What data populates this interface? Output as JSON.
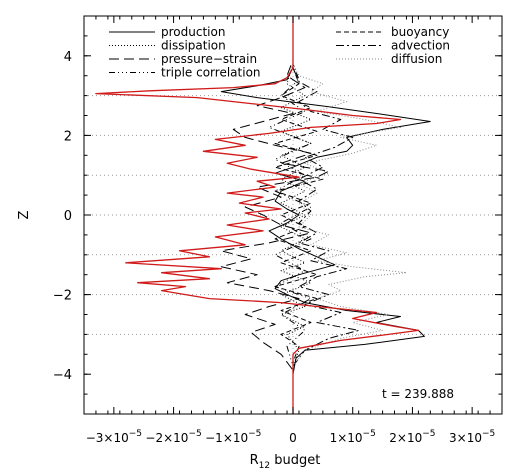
{
  "chart_data": {
    "type": "line",
    "orientation": "vertical-profile",
    "xlabel": "R",
    "xlabel_subscript": "12",
    "xlabel_suffix": " budget",
    "ylabel": "Z",
    "xlim": [
      -3.5e-05,
      3.5e-05
    ],
    "ylim": [
      -5,
      5
    ],
    "x_ticks": [
      {
        "value": -3e-05,
        "mantissa": "−3×10",
        "exp": "−5"
      },
      {
        "value": -2e-05,
        "mantissa": "−2×10",
        "exp": "−5"
      },
      {
        "value": -1e-05,
        "mantissa": "−1×10",
        "exp": "−5"
      },
      {
        "value": 0,
        "mantissa": "0",
        "exp": ""
      },
      {
        "value": 1e-05,
        "mantissa": "1×10",
        "exp": "−5"
      },
      {
        "value": 2e-05,
        "mantissa": "2×10",
        "exp": "−5"
      },
      {
        "value": 3e-05,
        "mantissa": "3×10",
        "exp": "−5"
      }
    ],
    "y_ticks": [
      {
        "value": -4,
        "label": "−4"
      },
      {
        "value": -2,
        "label": "−2"
      },
      {
        "value": 0,
        "label": "0"
      },
      {
        "value": 2,
        "label": "2"
      },
      {
        "value": 4,
        "label": "4"
      }
    ],
    "y_minor_step": 0.5,
    "reference_lines_z": [
      -3,
      -2,
      -1,
      0,
      1,
      2,
      3
    ],
    "annotation": "t = 239.888",
    "series": [
      {
        "name": "production",
        "color": "#000000",
        "dash": "none",
        "points": [
          [
            0,
            -5.0
          ],
          [
            0,
            -4.0
          ],
          [
            5e-07,
            -3.6
          ],
          [
            2e-06,
            -3.4
          ],
          [
            1.2e-05,
            -3.25
          ],
          [
            2.2e-05,
            -3.05
          ],
          [
            2.1e-05,
            -2.9
          ],
          [
            1.4e-05,
            -2.7
          ],
          [
            1.8e-05,
            -2.55
          ],
          [
            9e-06,
            -2.4
          ],
          [
            2e-06,
            -2.2
          ],
          [
            -1e-06,
            -2.0
          ],
          [
            -3e-06,
            -1.85
          ],
          [
            -2e-06,
            -1.65
          ],
          [
            1e-06,
            -1.5
          ],
          [
            7e-06,
            -1.25
          ],
          [
            4e-06,
            -1.05
          ],
          [
            1e-06,
            -0.85
          ],
          [
            -2e-06,
            -0.6
          ],
          [
            -4e-06,
            -0.4
          ],
          [
            -1e-06,
            -0.2
          ],
          [
            1e-06,
            0.0
          ],
          [
            -1e-06,
            0.15
          ],
          [
            -3e-06,
            0.35
          ],
          [
            -2e-06,
            0.6
          ],
          [
            2e-06,
            0.85
          ],
          [
            -3e-06,
            1.05
          ],
          [
            0,
            1.2
          ],
          [
            4e-06,
            1.45
          ],
          [
            9e-06,
            1.6
          ],
          [
            1e-05,
            1.75
          ],
          [
            9e-06,
            1.95
          ],
          [
            1.5e-05,
            2.15
          ],
          [
            2.3e-05,
            2.35
          ],
          [
            1.4e-05,
            2.55
          ],
          [
            6e-06,
            2.72
          ],
          [
            -6e-06,
            2.95
          ],
          [
            -1.2e-05,
            3.1
          ],
          [
            -6e-06,
            3.25
          ],
          [
            -1e-06,
            3.4
          ],
          [
            0,
            3.7
          ],
          [
            0,
            5.0
          ]
        ]
      },
      {
        "name": "dissipation",
        "color": "#000000",
        "dash": "1,2",
        "points": [
          [
            0,
            -5.0
          ],
          [
            0,
            -3.8
          ],
          [
            1e-06,
            -3.4
          ],
          [
            -1e-06,
            -3.0
          ],
          [
            2e-06,
            -2.8
          ],
          [
            -2e-06,
            -2.5
          ],
          [
            2e-06,
            -2.3
          ],
          [
            -2e-06,
            -2.0
          ],
          [
            3e-06,
            -1.7
          ],
          [
            -2e-06,
            -1.4
          ],
          [
            2e-06,
            -1.2
          ],
          [
            -2e-06,
            -0.9
          ],
          [
            2e-06,
            -0.6
          ],
          [
            -2e-06,
            -0.3
          ],
          [
            2e-06,
            0.0
          ],
          [
            -2e-06,
            0.3
          ],
          [
            2e-06,
            0.6
          ],
          [
            -2e-06,
            0.9
          ],
          [
            2e-06,
            1.2
          ],
          [
            -2e-06,
            1.5
          ],
          [
            3e-06,
            1.8
          ],
          [
            -2e-06,
            2.1
          ],
          [
            3e-06,
            2.4
          ],
          [
            -2e-06,
            2.7
          ],
          [
            2e-06,
            3.0
          ],
          [
            -1e-06,
            3.3
          ],
          [
            0,
            3.8
          ],
          [
            0,
            5.0
          ]
        ]
      },
      {
        "name": "pressure−strain",
        "color": "#000000",
        "dash": "10,5",
        "points": [
          [
            0,
            -5.0
          ],
          [
            0,
            -3.9
          ],
          [
            -2e-06,
            -3.5
          ],
          [
            -5e-06,
            -3.2
          ],
          [
            -7e-06,
            -2.95
          ],
          [
            -3e-06,
            -2.75
          ],
          [
            -8e-06,
            -2.5
          ],
          [
            -4e-06,
            -2.3
          ],
          [
            1e-06,
            -2.1
          ],
          [
            -4e-06,
            -1.9
          ],
          [
            -1.1e-05,
            -1.7
          ],
          [
            -6e-06,
            -1.5
          ],
          [
            -1.2e-05,
            -1.3
          ],
          [
            -7e-06,
            -1.1
          ],
          [
            -1.2e-05,
            -0.9
          ],
          [
            -4e-06,
            -0.7
          ],
          [
            3e-06,
            -0.45
          ],
          [
            -2e-06,
            -0.25
          ],
          [
            -5e-06,
            0.0
          ],
          [
            -8e-06,
            0.2
          ],
          [
            -2e-06,
            0.45
          ],
          [
            -6e-06,
            0.7
          ],
          [
            4e-06,
            0.95
          ],
          [
            6e-06,
            1.1
          ],
          [
            -2e-06,
            1.3
          ],
          [
            3e-06,
            1.55
          ],
          [
            -3e-06,
            1.75
          ],
          [
            -8e-06,
            1.95
          ],
          [
            -1e-05,
            2.15
          ],
          [
            -5e-06,
            2.35
          ],
          [
            0,
            2.55
          ],
          [
            -6e-06,
            2.75
          ],
          [
            -2e-06,
            2.95
          ],
          [
            2e-06,
            3.2
          ],
          [
            -1e-06,
            3.5
          ],
          [
            0,
            3.9
          ],
          [
            0,
            5.0
          ]
        ]
      },
      {
        "name": "triple correlation",
        "color": "#000000",
        "dash": "6,3,1,3,1,3,1,3",
        "points": [
          [
            0,
            -5.0
          ],
          [
            0,
            -3.8
          ],
          [
            -1e-06,
            -3.3
          ],
          [
            2e-06,
            -2.9
          ],
          [
            -2e-06,
            -2.5
          ],
          [
            3e-06,
            -2.1
          ],
          [
            -3e-06,
            -1.8
          ],
          [
            2e-06,
            -1.4
          ],
          [
            -3e-06,
            -1.0
          ],
          [
            3e-06,
            -0.6
          ],
          [
            -2e-06,
            -0.2
          ],
          [
            3e-06,
            0.2
          ],
          [
            -3e-06,
            0.6
          ],
          [
            2e-06,
            1.0
          ],
          [
            -3e-06,
            1.4
          ],
          [
            3e-06,
            1.8
          ],
          [
            -4e-06,
            2.2
          ],
          [
            2e-06,
            2.6
          ],
          [
            -2e-06,
            3.0
          ],
          [
            1e-06,
            3.4
          ],
          [
            0,
            3.8
          ],
          [
            0,
            5.0
          ]
        ]
      },
      {
        "name": "buoyancy",
        "color": "#000000",
        "dash": "5,3",
        "points": [
          [
            0,
            -5.0
          ],
          [
            0,
            -3.7
          ],
          [
            1e-06,
            -3.3
          ],
          [
            -2e-06,
            -3.0
          ],
          [
            3e-06,
            -2.7
          ],
          [
            -2e-06,
            -2.4
          ],
          [
            4e-06,
            -2.1
          ],
          [
            -3e-06,
            -1.8
          ],
          [
            4e-06,
            -1.5
          ],
          [
            -2e-06,
            -1.2
          ],
          [
            3e-06,
            -0.9
          ],
          [
            -3e-06,
            -0.6
          ],
          [
            2e-06,
            -0.3
          ],
          [
            -2e-06,
            0.0
          ],
          [
            3e-06,
            0.3
          ],
          [
            -3e-06,
            0.6
          ],
          [
            5e-06,
            0.9
          ],
          [
            -3e-06,
            1.2
          ],
          [
            4e-06,
            1.5
          ],
          [
            -3e-06,
            1.8
          ],
          [
            4e-06,
            2.1
          ],
          [
            -2e-06,
            2.4
          ],
          [
            3e-06,
            2.7
          ],
          [
            -2e-06,
            3.0
          ],
          [
            1e-06,
            3.3
          ],
          [
            0,
            3.7
          ],
          [
            0,
            5.0
          ]
        ]
      },
      {
        "name": "advection",
        "color": "#000000",
        "dash": "8,3,2,3",
        "points": [
          [
            0,
            -5.0
          ],
          [
            0,
            -3.8
          ],
          [
            2e-06,
            -3.4
          ],
          [
            6e-06,
            -3.1
          ],
          [
            1.1e-05,
            -2.9
          ],
          [
            4e-06,
            -2.7
          ],
          [
            8e-06,
            -2.45
          ],
          [
            2e-06,
            -2.25
          ],
          [
            6e-06,
            -2.0
          ],
          [
            1e-06,
            -1.8
          ],
          [
            4e-06,
            -1.55
          ],
          [
            9e-06,
            -1.35
          ],
          [
            3e-06,
            -1.15
          ],
          [
            6e-06,
            -0.9
          ],
          [
            1e-06,
            -0.7
          ],
          [
            4e-06,
            -0.45
          ],
          [
            1e-06,
            -0.2
          ],
          [
            3e-06,
            0.1
          ],
          [
            1e-06,
            0.35
          ],
          [
            4e-06,
            0.65
          ],
          [
            1e-06,
            0.9
          ],
          [
            5e-06,
            1.2
          ],
          [
            2e-06,
            1.45
          ],
          [
            7e-06,
            1.7
          ],
          [
            1e-05,
            1.95
          ],
          [
            5e-06,
            2.15
          ],
          [
            8e-06,
            2.4
          ],
          [
            3e-06,
            2.6
          ],
          [
            1e-06,
            2.85
          ],
          [
            4e-06,
            3.1
          ],
          [
            1e-06,
            3.35
          ],
          [
            0,
            3.7
          ],
          [
            0,
            5.0
          ]
        ]
      },
      {
        "name": "diffusion",
        "color": "#888888",
        "dash": "1,2",
        "points": [
          [
            0,
            -5.0
          ],
          [
            0,
            -3.8
          ],
          [
            2e-06,
            -3.4
          ],
          [
            8e-06,
            -3.1
          ],
          [
            1.5e-05,
            -2.9
          ],
          [
            1e-05,
            -2.7
          ],
          [
            1.6e-05,
            -2.5
          ],
          [
            8e-06,
            -2.3
          ],
          [
            4e-06,
            -2.1
          ],
          [
            8e-06,
            -1.9
          ],
          [
            6e-06,
            -1.75
          ],
          [
            1.2e-05,
            -1.55
          ],
          [
            1.9e-05,
            -1.45
          ],
          [
            1e-05,
            -1.3
          ],
          [
            4e-06,
            -1.15
          ],
          [
            9e-06,
            -0.95
          ],
          [
            3e-06,
            -0.75
          ],
          [
            6e-06,
            -0.5
          ],
          [
            1e-06,
            -0.3
          ],
          [
            3e-06,
            0.0
          ],
          [
            1e-06,
            0.3
          ],
          [
            4e-06,
            0.55
          ],
          [
            1e-06,
            0.8
          ],
          [
            6e-06,
            1.05
          ],
          [
            2e-06,
            1.3
          ],
          [
            1e-05,
            1.55
          ],
          [
            1.4e-05,
            1.75
          ],
          [
            8e-06,
            1.95
          ],
          [
            1.8e-05,
            2.2
          ],
          [
            1.2e-05,
            2.4
          ],
          [
            4e-06,
            2.6
          ],
          [
            9e-06,
            2.85
          ],
          [
            3e-06,
            3.1
          ],
          [
            5e-06,
            3.3
          ],
          [
            1e-06,
            3.5
          ],
          [
            0,
            3.8
          ],
          [
            0,
            5.0
          ]
        ]
      },
      {
        "name": "",
        "color": "#d11a1a",
        "dash": "none",
        "points": [
          [
            0,
            -5.0
          ],
          [
            0,
            -3.5
          ],
          [
            1e-06,
            -3.35
          ],
          [
            8e-06,
            -3.15
          ],
          [
            1.6e-05,
            -3.0
          ],
          [
            2.1e-05,
            -2.9
          ],
          [
            1.7e-05,
            -2.8
          ],
          [
            1e-05,
            -2.6
          ],
          [
            1.4e-05,
            -2.45
          ],
          [
            4e-06,
            -2.3
          ],
          [
            -2e-06,
            -2.2
          ],
          [
            -1.4e-05,
            -2.1
          ],
          [
            -2.2e-05,
            -1.9
          ],
          [
            -1.8e-05,
            -1.8
          ],
          [
            -2.6e-05,
            -1.7
          ],
          [
            -1.4e-05,
            -1.6
          ],
          [
            -2.2e-05,
            -1.45
          ],
          [
            -1.2e-05,
            -1.35
          ],
          [
            -2.8e-05,
            -1.2
          ],
          [
            -1.4e-05,
            -1.05
          ],
          [
            -1.9e-05,
            -0.9
          ],
          [
            -8e-06,
            -0.75
          ],
          [
            -1.3e-05,
            -0.55
          ],
          [
            -5e-06,
            -0.4
          ],
          [
            -1.1e-05,
            -0.25
          ],
          [
            -4e-06,
            -0.1
          ],
          [
            -8e-06,
            0.05
          ],
          [
            -2e-06,
            0.15
          ],
          [
            -9e-06,
            0.3
          ],
          [
            -5e-06,
            0.45
          ],
          [
            -1.1e-05,
            0.55
          ],
          [
            -3e-06,
            0.7
          ],
          [
            -6e-06,
            0.85
          ],
          [
            1e-06,
            0.95
          ],
          [
            -7e-06,
            1.15
          ],
          [
            -1.1e-05,
            1.3
          ],
          [
            -6e-06,
            1.45
          ],
          [
            -1.5e-05,
            1.6
          ],
          [
            -8e-06,
            1.75
          ],
          [
            -1.3e-05,
            1.9
          ],
          [
            -4e-06,
            2.05
          ],
          [
            3e-06,
            2.2
          ],
          [
            1.4e-05,
            2.3
          ],
          [
            1.8e-05,
            2.4
          ],
          [
            1e-05,
            2.5
          ],
          [
            2e-06,
            2.65
          ],
          [
            -7e-06,
            2.8
          ],
          [
            -1.6e-05,
            2.95
          ],
          [
            -3.3e-05,
            3.05
          ],
          [
            -2.4e-05,
            3.12
          ],
          [
            -1e-05,
            3.2
          ],
          [
            -3e-06,
            3.3
          ],
          [
            -1e-06,
            3.45
          ],
          [
            0,
            3.7
          ],
          [
            0,
            5.0
          ]
        ]
      }
    ],
    "legend": {
      "left": [
        "production",
        "dissipation",
        "pressure−strain",
        "triple correlation"
      ],
      "right": [
        "buoyancy",
        "advection",
        "diffusion"
      ]
    }
  }
}
